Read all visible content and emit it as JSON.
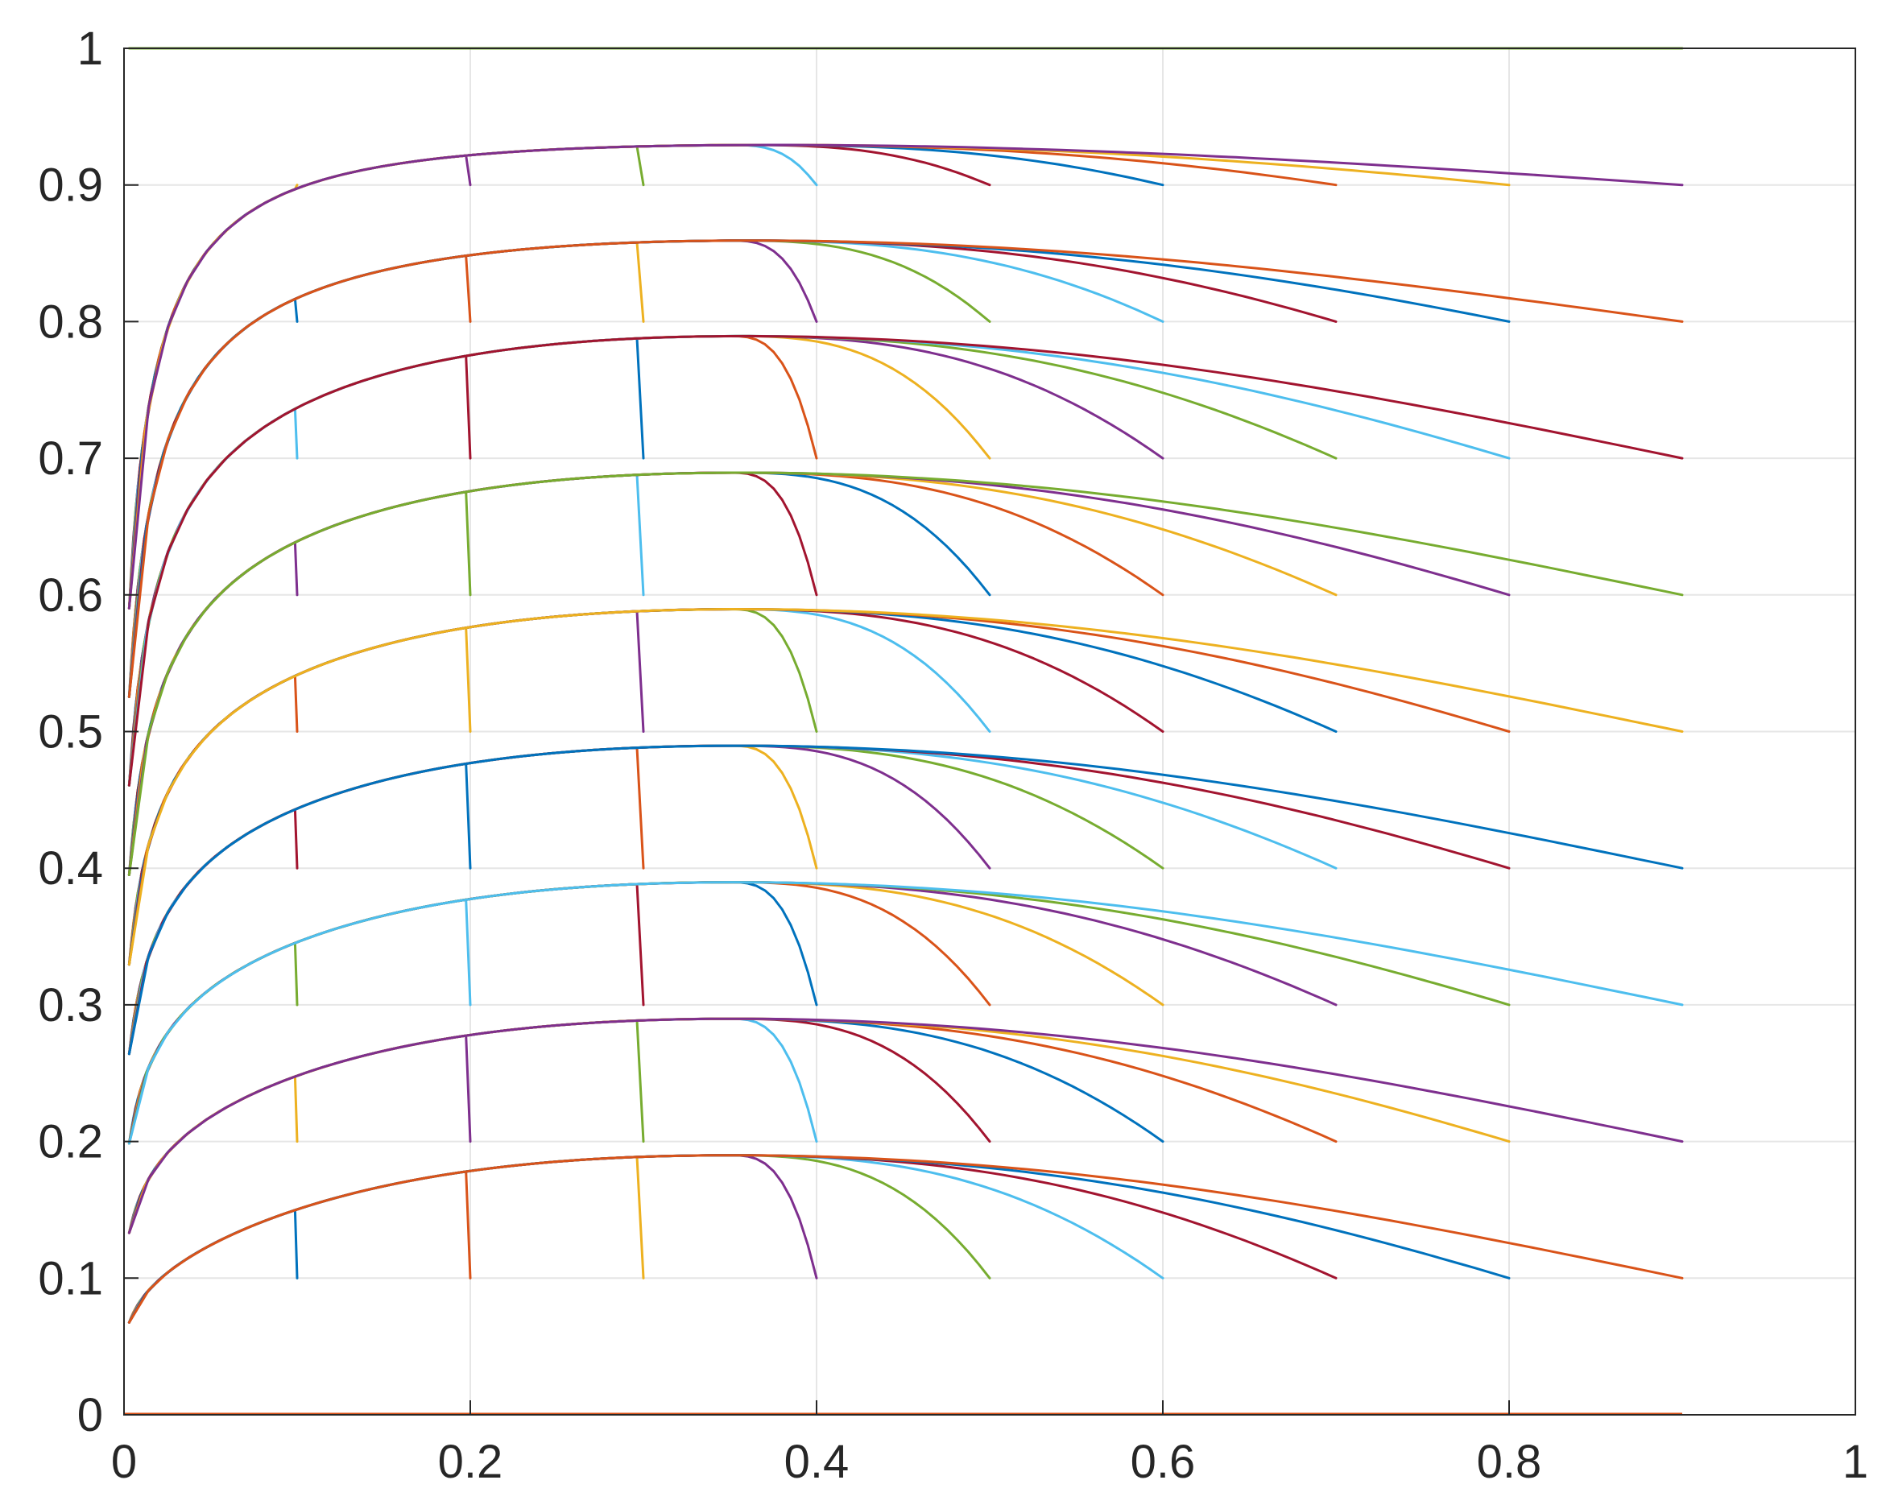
{
  "chart_data": {
    "type": "line",
    "title": "",
    "xlabel": "",
    "ylabel": "",
    "xlim": [
      0,
      1
    ],
    "ylim": [
      0,
      1
    ],
    "grid": true,
    "legend": "none",
    "x_ticks": [
      "0",
      "0.2",
      "0.4",
      "0.6",
      "0.8",
      "1"
    ],
    "y_ticks": [
      "0",
      "0.1",
      "0.2",
      "0.3",
      "0.4",
      "0.5",
      "0.6",
      "0.7",
      "0.8",
      "0.9",
      "1"
    ],
    "x_tick_values": [
      0,
      0.2,
      0.4,
      0.6,
      0.8,
      1
    ],
    "y_tick_values": [
      0,
      0.1,
      0.2,
      0.3,
      0.4,
      0.5,
      0.6,
      0.7,
      0.8,
      0.9,
      1
    ],
    "color_cycle": [
      "#0072BD",
      "#D95319",
      "#EDB120",
      "#7E2F8E",
      "#77AC30",
      "#4DBEEE",
      "#A2142F"
    ],
    "series": [
      {
        "peak": 0.1,
        "xmax": 0.1,
        "color": "#0072BD"
      },
      {
        "peak": 0.1,
        "xmax": 0.2,
        "color": "#D95319"
      },
      {
        "peak": 0.1,
        "xmax": 0.3,
        "color": "#EDB120"
      },
      {
        "peak": 0.1,
        "xmax": 0.4,
        "color": "#7E2F8E"
      },
      {
        "peak": 0.1,
        "xmax": 0.5,
        "color": "#77AC30"
      },
      {
        "peak": 0.1,
        "xmax": 0.6,
        "color": "#4DBEEE"
      },
      {
        "peak": 0.1,
        "xmax": 0.7,
        "color": "#A2142F"
      },
      {
        "peak": 0.1,
        "xmax": 0.8,
        "color": "#0072BD"
      },
      {
        "peak": 0.1,
        "xmax": 0.9,
        "color": "#D95319"
      },
      {
        "peak": 0.2,
        "xmax": 0.1,
        "color": "#EDB120"
      },
      {
        "peak": 0.2,
        "xmax": 0.2,
        "color": "#7E2F8E"
      },
      {
        "peak": 0.2,
        "xmax": 0.3,
        "color": "#77AC30"
      },
      {
        "peak": 0.2,
        "xmax": 0.4,
        "color": "#4DBEEE"
      },
      {
        "peak": 0.2,
        "xmax": 0.5,
        "color": "#A2142F"
      },
      {
        "peak": 0.2,
        "xmax": 0.6,
        "color": "#0072BD"
      },
      {
        "peak": 0.2,
        "xmax": 0.7,
        "color": "#D95319"
      },
      {
        "peak": 0.2,
        "xmax": 0.8,
        "color": "#EDB120"
      },
      {
        "peak": 0.2,
        "xmax": 0.9,
        "color": "#7E2F8E"
      },
      {
        "peak": 0.3,
        "xmax": 0.1,
        "color": "#77AC30"
      },
      {
        "peak": 0.3,
        "xmax": 0.2,
        "color": "#4DBEEE"
      },
      {
        "peak": 0.3,
        "xmax": 0.3,
        "color": "#A2142F"
      },
      {
        "peak": 0.3,
        "xmax": 0.4,
        "color": "#0072BD"
      },
      {
        "peak": 0.3,
        "xmax": 0.5,
        "color": "#D95319"
      },
      {
        "peak": 0.3,
        "xmax": 0.6,
        "color": "#EDB120"
      },
      {
        "peak": 0.3,
        "xmax": 0.7,
        "color": "#7E2F8E"
      },
      {
        "peak": 0.3,
        "xmax": 0.8,
        "color": "#77AC30"
      },
      {
        "peak": 0.3,
        "xmax": 0.9,
        "color": "#4DBEEE"
      },
      {
        "peak": 0.4,
        "xmax": 0.1,
        "color": "#A2142F"
      },
      {
        "peak": 0.4,
        "xmax": 0.2,
        "color": "#0072BD"
      },
      {
        "peak": 0.4,
        "xmax": 0.3,
        "color": "#D95319"
      },
      {
        "peak": 0.4,
        "xmax": 0.4,
        "color": "#EDB120"
      },
      {
        "peak": 0.4,
        "xmax": 0.5,
        "color": "#7E2F8E"
      },
      {
        "peak": 0.4,
        "xmax": 0.6,
        "color": "#77AC30"
      },
      {
        "peak": 0.4,
        "xmax": 0.7,
        "color": "#4DBEEE"
      },
      {
        "peak": 0.4,
        "xmax": 0.8,
        "color": "#A2142F"
      },
      {
        "peak": 0.4,
        "xmax": 0.9,
        "color": "#0072BD"
      },
      {
        "peak": 0.5,
        "xmax": 0.1,
        "color": "#D95319"
      },
      {
        "peak": 0.5,
        "xmax": 0.2,
        "color": "#EDB120"
      },
      {
        "peak": 0.5,
        "xmax": 0.3,
        "color": "#7E2F8E"
      },
      {
        "peak": 0.5,
        "xmax": 0.4,
        "color": "#77AC30"
      },
      {
        "peak": 0.5,
        "xmax": 0.5,
        "color": "#4DBEEE"
      },
      {
        "peak": 0.5,
        "xmax": 0.6,
        "color": "#A2142F"
      },
      {
        "peak": 0.5,
        "xmax": 0.7,
        "color": "#0072BD"
      },
      {
        "peak": 0.5,
        "xmax": 0.8,
        "color": "#D95319"
      },
      {
        "peak": 0.5,
        "xmax": 0.9,
        "color": "#EDB120"
      },
      {
        "peak": 0.6,
        "xmax": 0.1,
        "color": "#7E2F8E"
      },
      {
        "peak": 0.6,
        "xmax": 0.2,
        "color": "#77AC30"
      },
      {
        "peak": 0.6,
        "xmax": 0.3,
        "color": "#4DBEEE"
      },
      {
        "peak": 0.6,
        "xmax": 0.4,
        "color": "#A2142F"
      },
      {
        "peak": 0.6,
        "xmax": 0.5,
        "color": "#0072BD"
      },
      {
        "peak": 0.6,
        "xmax": 0.6,
        "color": "#D95319"
      },
      {
        "peak": 0.6,
        "xmax": 0.7,
        "color": "#EDB120"
      },
      {
        "peak": 0.6,
        "xmax": 0.8,
        "color": "#7E2F8E"
      },
      {
        "peak": 0.6,
        "xmax": 0.9,
        "color": "#77AC30"
      },
      {
        "peak": 0.7,
        "xmax": 0.1,
        "color": "#4DBEEE"
      },
      {
        "peak": 0.7,
        "xmax": 0.2,
        "color": "#A2142F"
      },
      {
        "peak": 0.7,
        "xmax": 0.3,
        "color": "#0072BD"
      },
      {
        "peak": 0.7,
        "xmax": 0.4,
        "color": "#D95319"
      },
      {
        "peak": 0.7,
        "xmax": 0.5,
        "color": "#EDB120"
      },
      {
        "peak": 0.7,
        "xmax": 0.6,
        "color": "#7E2F8E"
      },
      {
        "peak": 0.7,
        "xmax": 0.7,
        "color": "#77AC30"
      },
      {
        "peak": 0.7,
        "xmax": 0.8,
        "color": "#4DBEEE"
      },
      {
        "peak": 0.7,
        "xmax": 0.9,
        "color": "#A2142F"
      },
      {
        "peak": 0.8,
        "xmax": 0.1,
        "color": "#0072BD"
      },
      {
        "peak": 0.8,
        "xmax": 0.2,
        "color": "#D95319"
      },
      {
        "peak": 0.8,
        "xmax": 0.3,
        "color": "#EDB120"
      },
      {
        "peak": 0.8,
        "xmax": 0.4,
        "color": "#7E2F8E"
      },
      {
        "peak": 0.8,
        "xmax": 0.5,
        "color": "#77AC30"
      },
      {
        "peak": 0.8,
        "xmax": 0.6,
        "color": "#4DBEEE"
      },
      {
        "peak": 0.8,
        "xmax": 0.7,
        "color": "#A2142F"
      },
      {
        "peak": 0.8,
        "xmax": 0.8,
        "color": "#0072BD"
      },
      {
        "peak": 0.8,
        "xmax": 0.9,
        "color": "#D95319"
      },
      {
        "peak": 0.9,
        "xmax": 0.1,
        "color": "#EDB120"
      },
      {
        "peak": 0.9,
        "xmax": 0.2,
        "color": "#7E2F8E"
      },
      {
        "peak": 0.9,
        "xmax": 0.3,
        "color": "#77AC30"
      },
      {
        "peak": 0.9,
        "xmax": 0.4,
        "color": "#4DBEEE"
      },
      {
        "peak": 0.9,
        "xmax": 0.5,
        "color": "#A2142F"
      },
      {
        "peak": 0.9,
        "xmax": 0.6,
        "color": "#0072BD"
      },
      {
        "peak": 0.9,
        "xmax": 0.7,
        "color": "#D95319"
      },
      {
        "peak": 0.9,
        "xmax": 0.8,
        "color": "#EDB120"
      },
      {
        "peak": 0.9,
        "xmax": 0.9,
        "color": "#7E2F8E"
      },
      {
        "peak": 1.0,
        "xmax": 0.9,
        "color": "#77AC30"
      }
    ]
  }
}
